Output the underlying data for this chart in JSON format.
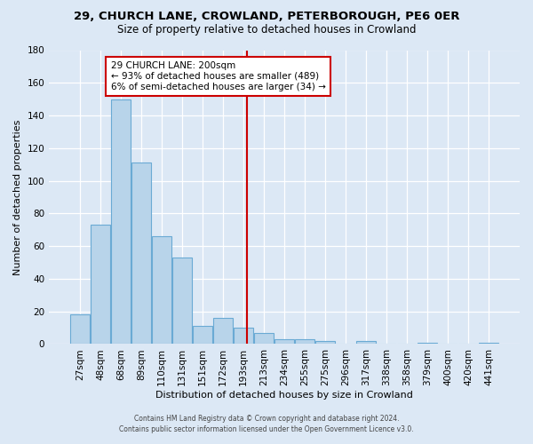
{
  "title1": "29, CHURCH LANE, CROWLAND, PETERBOROUGH, PE6 0ER",
  "title2": "Size of property relative to detached houses in Crowland",
  "xlabel": "Distribution of detached houses by size in Crowland",
  "ylabel": "Number of detached properties",
  "bar_labels": [
    "27sqm",
    "48sqm",
    "68sqm",
    "89sqm",
    "110sqm",
    "131sqm",
    "151sqm",
    "172sqm",
    "193sqm",
    "213sqm",
    "234sqm",
    "255sqm",
    "275sqm",
    "296sqm",
    "317sqm",
    "338sqm",
    "358sqm",
    "379sqm",
    "400sqm",
    "420sqm",
    "441sqm"
  ],
  "bar_heights": [
    18,
    73,
    150,
    111,
    66,
    53,
    11,
    16,
    10,
    7,
    3,
    3,
    2,
    0,
    2,
    0,
    0,
    1,
    0,
    0,
    1
  ],
  "bar_color": "#b8d4ea",
  "bar_edge_color": "#6aaad4",
  "vline_color": "#cc0000",
  "vline_x_idx": 8.18,
  "ylim": [
    0,
    180
  ],
  "yticks": [
    0,
    20,
    40,
    60,
    80,
    100,
    120,
    140,
    160,
    180
  ],
  "annotation_title": "29 CHURCH LANE: 200sqm",
  "annotation_line1": "← 93% of detached houses are smaller (489)",
  "annotation_line2": "6% of semi-detached houses are larger (34) →",
  "annotation_box_facecolor": "#ffffff",
  "annotation_box_edgecolor": "#cc0000",
  "footer1": "Contains HM Land Registry data © Crown copyright and database right 2024.",
  "footer2": "Contains public sector information licensed under the Open Government Licence v3.0.",
  "background_color": "#dce8f5",
  "grid_color": "#ffffff"
}
